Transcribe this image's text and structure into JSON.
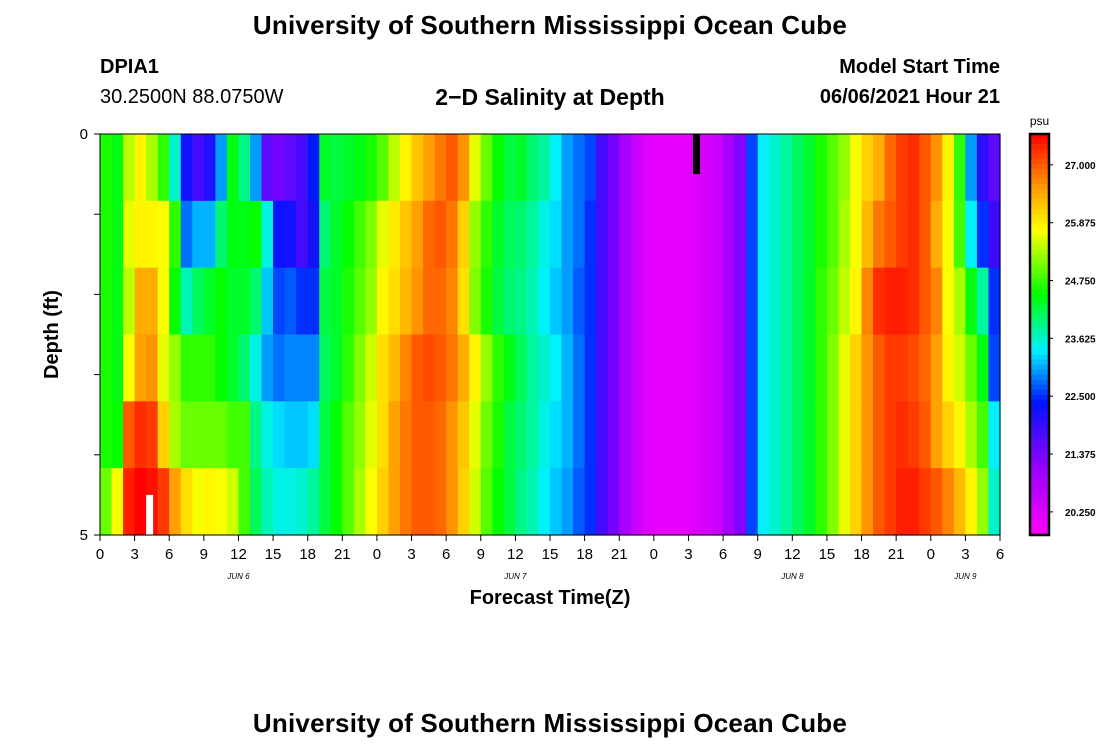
{
  "header": {
    "title_top": "University of Southern Mississippi Ocean Cube",
    "title_bottom": "University of Southern Mississippi Ocean Cube",
    "station": "DPIA1",
    "coords": "30.2500N  88.0750W",
    "plot_title": "2−D Salinity at Depth",
    "model_label": "Model Start Time",
    "model_time": "06/06/2021 Hour 21"
  },
  "chart_data": {
    "type": "heatmap",
    "title": "2-D Salinity at Depth",
    "xlabel": "Forecast Time(Z)",
    "ylabel": "Depth (ft)",
    "x_start_hour": 0,
    "x_end_hour": 78,
    "x_step_hours": 1,
    "x_tick_labels": [
      "0",
      "3",
      "6",
      "9",
      "12",
      "15",
      "18",
      "21",
      "0",
      "3",
      "6",
      "9",
      "12",
      "15",
      "18",
      "21",
      "0",
      "3",
      "6",
      "9",
      "12",
      "15",
      "18",
      "21",
      "0",
      "3",
      "6"
    ],
    "date_labels": [
      {
        "label": "JUN 6",
        "hour": 12
      },
      {
        "label": "JUN 7",
        "hour": 36
      },
      {
        "label": "JUN 8",
        "hour": 60
      },
      {
        "label": "JUN 9",
        "hour": 75
      }
    ],
    "y_tick_labels": [
      {
        "label": "0",
        "depth": 0
      },
      {
        "label": "5",
        "depth": 5
      }
    ],
    "ylim": [
      0,
      5
    ],
    "depth_levels": 5,
    "colorbar": {
      "unit": "psu",
      "min": 19.8,
      "max": 27.6,
      "tick_values": [
        27.0,
        25.875,
        24.75,
        23.625,
        22.5,
        21.375,
        20.25
      ],
      "tick_labels": [
        "27.000",
        "25.875",
        "24.750",
        "23.625",
        "22.500",
        "21.375",
        "20.250"
      ]
    },
    "salinity_psu_by_depth_level": [
      [
        24.6,
        24.4,
        25.4,
        25.8,
        25.3,
        24.7,
        23.6,
        22.2,
        21.8,
        22.1,
        23.0,
        24.4,
        23.9,
        23.0,
        21.6,
        21.4,
        21.6,
        21.8,
        22.4,
        24.3,
        24.2,
        24.3,
        24.4,
        24.6,
        24.9,
        25.4,
        25.8,
        26.2,
        26.5,
        26.8,
        27.0,
        26.6,
        25.6,
        25.0,
        24.5,
        24.2,
        24.3,
        24.0,
        23.8,
        23.4,
        23.0,
        22.8,
        22.6,
        21.8,
        21.4,
        20.9,
        20.5,
        20.2,
        20.1,
        20.1,
        20.1,
        20.2,
        20.3,
        20.5,
        20.9,
        21.3,
        22.6,
        23.4,
        23.6,
        23.8,
        24.1,
        24.3,
        24.6,
        24.9,
        25.2,
        25.7,
        26.1,
        26.4,
        26.9,
        27.2,
        27.3,
        27.0,
        26.6,
        25.8,
        24.7,
        23.0,
        22.0,
        21.6
      ],
      [
        24.6,
        24.4,
        25.6,
        25.8,
        25.8,
        25.7,
        24.7,
        22.8,
        23.1,
        23.1,
        24.0,
        24.4,
        24.4,
        24.5,
        23.5,
        22.3,
        22.2,
        21.8,
        22.2,
        24.0,
        24.3,
        24.5,
        24.8,
        25.1,
        25.6,
        25.9,
        26.2,
        26.5,
        26.9,
        27.0,
        26.8,
        26.1,
        25.2,
        24.7,
        24.3,
        24.1,
        24.0,
        23.8,
        23.5,
        23.3,
        23.0,
        22.8,
        22.5,
        21.8,
        21.4,
        20.9,
        20.5,
        20.2,
        20.1,
        20.1,
        20.1,
        20.2,
        20.3,
        20.5,
        20.9,
        21.3,
        22.6,
        23.4,
        23.6,
        23.8,
        24.1,
        24.3,
        24.6,
        24.9,
        25.3,
        25.7,
        26.3,
        26.8,
        27.0,
        27.2,
        27.3,
        27.0,
        26.4,
        25.7,
        24.8,
        23.4,
        22.5,
        21.9
      ],
      [
        24.6,
        24.4,
        25.4,
        26.4,
        26.4,
        25.7,
        24.5,
        23.7,
        24.1,
        24.3,
        24.5,
        24.3,
        24.3,
        24.0,
        23.2,
        22.6,
        22.7,
        22.5,
        22.5,
        24.2,
        24.3,
        24.6,
        24.9,
        25.2,
        25.8,
        26.0,
        26.3,
        26.6,
        26.9,
        26.9,
        26.7,
        26.0,
        25.1,
        24.6,
        24.2,
        24.0,
        23.9,
        23.7,
        23.4,
        23.2,
        23.0,
        22.7,
        22.5,
        21.8,
        21.4,
        20.9,
        20.5,
        20.2,
        20.1,
        20.1,
        20.1,
        20.2,
        20.3,
        20.5,
        20.9,
        21.3,
        22.6,
        23.4,
        23.6,
        23.8,
        24.1,
        24.3,
        24.7,
        25.0,
        25.4,
        25.8,
        26.7,
        27.3,
        27.4,
        27.4,
        27.3,
        27.0,
        26.7,
        25.7,
        25.3,
        24.4,
        23.8,
        22.5
      ],
      [
        24.6,
        24.4,
        25.7,
        26.5,
        26.6,
        25.6,
        25.2,
        24.7,
        24.7,
        24.7,
        24.5,
        24.3,
        24.0,
        23.5,
        23.0,
        22.8,
        22.9,
        22.9,
        22.9,
        24.1,
        24.3,
        24.7,
        25.1,
        25.5,
        26.0,
        26.3,
        26.7,
        27.0,
        27.1,
        27.0,
        26.8,
        26.4,
        25.8,
        25.2,
        24.7,
        24.4,
        24.1,
        23.8,
        23.6,
        23.4,
        23.1,
        22.8,
        22.5,
        21.8,
        21.4,
        20.9,
        20.5,
        20.2,
        20.1,
        20.1,
        20.1,
        20.2,
        20.3,
        20.5,
        20.9,
        21.3,
        22.6,
        23.4,
        23.6,
        23.8,
        24.1,
        24.3,
        24.7,
        25.1,
        25.6,
        26.1,
        26.6,
        27.0,
        27.2,
        27.2,
        27.1,
        26.9,
        26.5,
        25.8,
        25.5,
        25.0,
        24.4,
        22.6
      ],
      [
        24.6,
        24.5,
        27.0,
        27.3,
        27.2,
        26.1,
        25.3,
        25.0,
        25.0,
        25.0,
        25.0,
        24.8,
        24.8,
        23.9,
        23.5,
        23.3,
        23.2,
        23.2,
        23.3,
        24.2,
        24.5,
        24.9,
        25.2,
        25.6,
        26.0,
        26.5,
        26.8,
        27.0,
        27.0,
        26.9,
        26.6,
        26.2,
        25.6,
        25.0,
        24.6,
        24.2,
        24.0,
        23.8,
        23.5,
        23.3,
        23.1,
        22.8,
        22.5,
        21.8,
        21.4,
        20.9,
        20.5,
        20.2,
        20.1,
        20.1,
        20.1,
        20.2,
        20.3,
        20.5,
        20.9,
        21.3,
        22.6,
        23.4,
        23.6,
        23.8,
        24.1,
        24.3,
        24.7,
        25.1,
        25.6,
        26.1,
        26.6,
        27.0,
        27.2,
        27.3,
        27.2,
        27.0,
        26.5,
        26.1,
        25.8,
        25.3,
        24.8,
        23.4
      ],
      [
        25.0,
        25.7,
        27.4,
        27.6,
        27.5,
        27.2,
        26.5,
        26.0,
        25.7,
        25.8,
        25.7,
        25.5,
        24.8,
        24.1,
        23.7,
        23.5,
        23.5,
        23.6,
        23.8,
        24.2,
        24.5,
        24.9,
        25.3,
        25.7,
        26.1,
        26.5,
        26.8,
        27.0,
        27.0,
        26.9,
        26.6,
        26.1,
        25.5,
        24.9,
        24.5,
        24.2,
        23.9,
        23.7,
        23.4,
        23.2,
        23.0,
        22.7,
        22.5,
        21.8,
        21.4,
        20.9,
        20.5,
        20.2,
        20.1,
        20.1,
        20.1,
        20.2,
        20.3,
        20.5,
        20.9,
        21.3,
        22.6,
        23.4,
        23.6,
        23.8,
        24.1,
        24.3,
        24.7,
        25.1,
        25.6,
        26.1,
        26.6,
        27.0,
        27.2,
        27.4,
        27.4,
        27.2,
        27.0,
        26.7,
        26.3,
        25.8,
        25.2,
        23.6
      ]
    ],
    "missing_markers": [
      {
        "hour": 4.3,
        "depth_from": 4.5,
        "depth_to": 5.0,
        "color": "#ffffff"
      },
      {
        "hour": 51.7,
        "depth_from": 0.0,
        "depth_to": 0.5,
        "color": "#000000"
      }
    ]
  }
}
